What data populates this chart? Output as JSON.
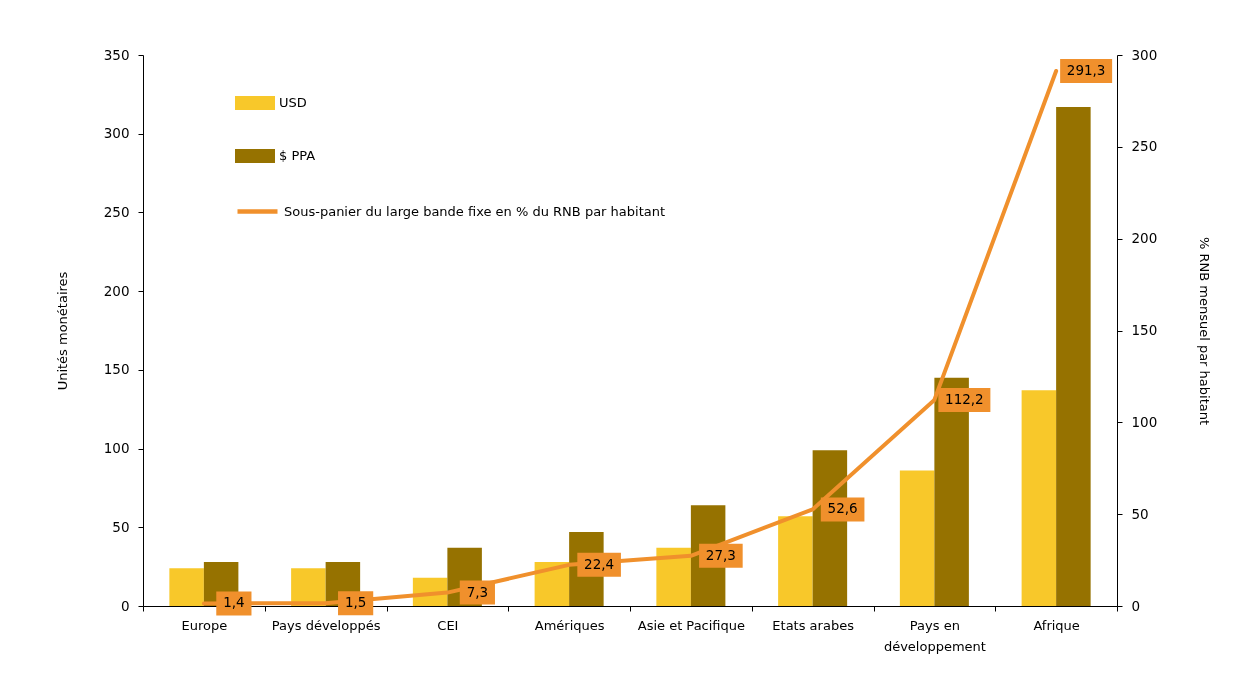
{
  "chart_data": {
    "type": "bar",
    "categories": [
      "Europe",
      "Pays développés",
      "CEI",
      "Amériques",
      "Asie et Pacifique",
      "Etats arabes",
      "Pays en développement",
      "Afrique"
    ],
    "ylabel": "Unités monétaires",
    "y2label": "% RNB mensuel par habitant",
    "series": [
      {
        "name": "USD",
        "color": "#f8c82a",
        "values": [
          24,
          24,
          18,
          28,
          37,
          57,
          86,
          137
        ]
      },
      {
        "name": "$ PPA",
        "color": "#967200",
        "values": [
          28,
          28,
          37,
          47,
          64,
          99,
          145,
          317
        ]
      },
      {
        "name": "Sous-panier du large bande fixe en % du RNB par habitant",
        "type": "line",
        "axis": "y2",
        "color": "#f0902c",
        "values": [
          1.4,
          1.5,
          7.3,
          22.4,
          27.3,
          52.6,
          112.2,
          291.3
        ],
        "value_labels": [
          "1,4",
          "1,5",
          "7,3",
          "22,4",
          "27,3",
          "52,6",
          "112,2",
          "291,3"
        ]
      }
    ],
    "ylim": [
      0,
      350
    ],
    "yticks": [
      0,
      50,
      100,
      150,
      200,
      250,
      300,
      350
    ],
    "y2lim": [
      0,
      300
    ],
    "y2ticks": [
      0,
      50,
      100,
      150,
      200,
      250,
      300
    ],
    "legend": "top left"
  }
}
